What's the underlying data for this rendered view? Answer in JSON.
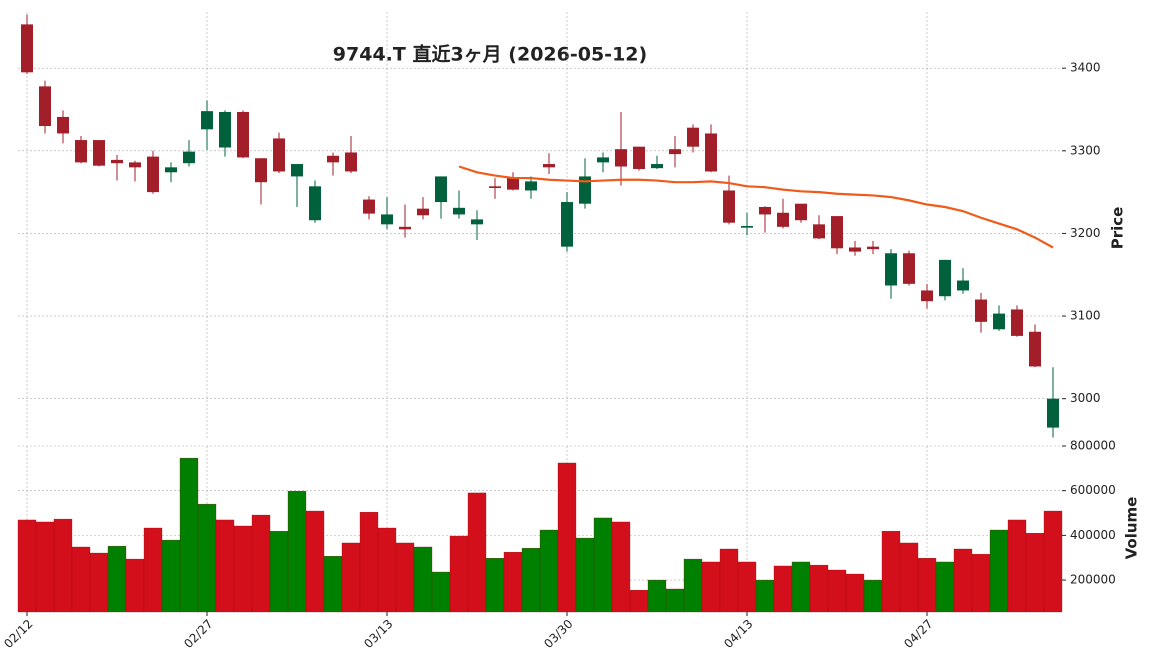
{
  "chart_data": {
    "type": "candlestick",
    "title": "9744.T  直近3ヶ月  (2026-05-12)",
    "categories": [
      "02/12",
      null,
      null,
      null,
      null,
      null,
      null,
      null,
      null,
      null,
      "02/27",
      null,
      null,
      null,
      null,
      null,
      null,
      null,
      null,
      null,
      "03/13",
      null,
      null,
      null,
      null,
      null,
      null,
      null,
      null,
      null,
      "03/30",
      null,
      null,
      null,
      null,
      null,
      null,
      null,
      null,
      null,
      "04/13",
      null,
      null,
      null,
      null,
      null,
      null,
      null,
      null,
      null,
      "04/27",
      null,
      null,
      null,
      null,
      null,
      null,
      null
    ],
    "open": [
      3453,
      3378,
      3341,
      3313,
      3313,
      3289,
      3286,
      3293,
      3274,
      3285,
      3326,
      3304,
      3347,
      3291,
      3315,
      3269,
      3216,
      3294,
      3298,
      3241,
      3211,
      3208,
      3230,
      3238,
      3223,
      3211,
      3257,
      3268,
      3252,
      3284,
      3184,
      3236,
      3286,
      3302,
      3305,
      3279,
      3302,
      3328,
      3321,
      3252,
      3207,
      3232,
      3225,
      3236,
      3211,
      3221,
      3183,
      3184,
      3137,
      3176,
      3131,
      3124,
      3131,
      3120,
      3084,
      3108,
      3081,
      2965
    ],
    "high": [
      3465,
      3385,
      3349,
      3318,
      3313,
      3295,
      3288,
      3300,
      3286,
      3313,
      3361,
      3349,
      3349,
      3291,
      3322,
      3284,
      3264,
      3298,
      3318,
      3245,
      3244,
      3235,
      3244,
      3269,
      3252,
      3228,
      3267,
      3274,
      3269,
      3297,
      3250,
      3291,
      3298,
      3347,
      3305,
      3294,
      3318,
      3332,
      3332,
      3270,
      3225,
      3233,
      3242,
      3236,
      3222,
      3221,
      3191,
      3191,
      3181,
      3179,
      3139,
      3168,
      3158,
      3128,
      3113,
      3113,
      3090,
      3038
    ],
    "low": [
      3393,
      3321,
      3309,
      3285,
      3281,
      3264,
      3263,
      3248,
      3262,
      3281,
      3301,
      3293,
      3291,
      3235,
      3273,
      3232,
      3213,
      3270,
      3273,
      3217,
      3205,
      3195,
      3217,
      3218,
      3218,
      3192,
      3242,
      3252,
      3242,
      3272,
      3178,
      3230,
      3274,
      3258,
      3276,
      3278,
      3280,
      3298,
      3274,
      3211,
      3198,
      3201,
      3206,
      3213,
      3193,
      3175,
      3173,
      3175,
      3121,
      3137,
      3109,
      3119,
      3127,
      3080,
      3082,
      3075,
      3038,
      2953
    ],
    "close": [
      3395,
      3330,
      3321,
      3286,
      3282,
      3285,
      3280,
      3250,
      3280,
      3299,
      3348,
      3347,
      3292,
      3262,
      3275,
      3284,
      3257,
      3286,
      3275,
      3224,
      3223,
      3205,
      3222,
      3269,
      3231,
      3217,
      3255,
      3253,
      3263,
      3280,
      3238,
      3269,
      3292,
      3281,
      3278,
      3284,
      3296,
      3305,
      3275,
      3213,
      3209,
      3223,
      3208,
      3216,
      3194,
      3182,
      3178,
      3181,
      3176,
      3139,
      3118,
      3168,
      3143,
      3093,
      3103,
      3076,
      3039,
      3000
    ],
    "volume": [
      469000,
      460000,
      473000,
      348000,
      321000,
      352000,
      294000,
      433000,
      379000,
      746000,
      540000,
      469000,
      442000,
      491000,
      419000,
      598000,
      509000,
      307000,
      366000,
      504000,
      433000,
      366000,
      348000,
      236000,
      397000,
      590000,
      298000,
      325000,
      343000,
      424000,
      724000,
      388000,
      478000,
      460000,
      155000,
      200000,
      160000,
      294000,
      281000,
      339000,
      281000,
      200000,
      263000,
      281000,
      267000,
      245000,
      227000,
      200000,
      419000,
      366000,
      298000,
      281000,
      339000,
      316000,
      424000,
      469000,
      410000,
      509000
    ],
    "moving_average": {
      "color": "#f05a1a",
      "values": [
        null,
        null,
        null,
        null,
        null,
        null,
        null,
        null,
        null,
        null,
        null,
        null,
        null,
        null,
        null,
        null,
        null,
        null,
        null,
        null,
        null,
        null,
        null,
        null,
        3281,
        3274,
        3270,
        3267,
        3267,
        3265,
        3264,
        3263,
        3264,
        3265,
        3265,
        3264,
        3262,
        3262,
        3263,
        3261,
        3257,
        3256,
        3253,
        3251,
        3250,
        3248,
        3247,
        3246,
        3244,
        3240,
        3235,
        3232,
        3227,
        3219,
        3212,
        3205,
        3195,
        3183
      ]
    },
    "up_color": "#00613c",
    "down_color": "#a21f2a",
    "volume_up_color": "#008000",
    "volume_down_color": "#d40f1c",
    "ylim": [
      2950,
      3468
    ],
    "yticks": [
      3000,
      3100,
      3200,
      3300,
      3400
    ],
    "ylabel": "Price",
    "volume_lim": [
      57000,
      800000
    ],
    "volume_ticks": [
      200000,
      400000,
      600000,
      800000
    ],
    "volume_label": "Volume",
    "grid": true
  }
}
